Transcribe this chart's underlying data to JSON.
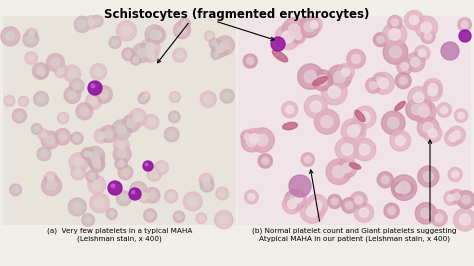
{
  "title": "Schistocytes (fragmented erythrocytes)",
  "title_fontsize": 8.5,
  "title_fontweight": "bold",
  "caption_a": "(a)  Very few platelets in a typical MAHA\n(Leishman stain, x 400)",
  "caption_b": "(b) Normal platelet count and Giant platelets suggesting\nAtypical MAHA in our patient (Leishman stain, x 400)",
  "caption_fontsize": 5.2,
  "bg_color": "#f0eee8",
  "left_bg": "#e8e4dc",
  "right_bg": "#f0e4e8",
  "left_rbc_color": "#e8b0be",
  "left_rbc_inner": "#ddd8d0",
  "right_rbc_color": "#d898b0",
  "right_rbc_inner": "#ecd8e0",
  "purple_color": "#9010a0",
  "schistocyte_color": "#c06080"
}
